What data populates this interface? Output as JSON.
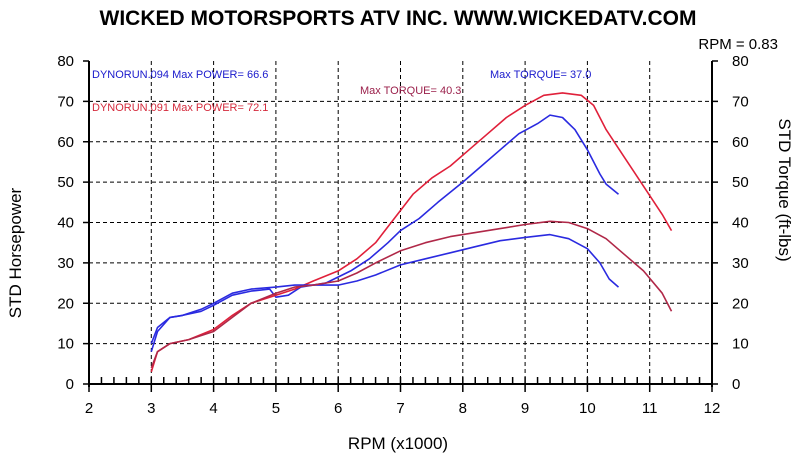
{
  "chart_data": {
    "type": "line",
    "title": "WICKED MOTORSPORTS ATV INC. WWW.WICKEDATV.COM",
    "rpm_note": "RPM = 0.83",
    "xlabel": "RPM (x1000)",
    "ylabel_left": "STD Horsepower",
    "ylabel_right": "STD Torque (ft-lbs)",
    "xlim": [
      2,
      12
    ],
    "ylim": [
      0,
      80
    ],
    "x_ticks": [
      2,
      3,
      4,
      5,
      6,
      7,
      8,
      9,
      10,
      11,
      12
    ],
    "y_ticks": [
      0,
      10,
      20,
      30,
      40,
      50,
      60,
      70,
      80
    ],
    "grid": true,
    "legend": [
      {
        "text": "DYNORUN.094  Max POWER= 66.6",
        "color": "#1a1acc"
      },
      {
        "text": "DYNORUN.091  Max POWER= 72.1",
        "color": "#d42a3c"
      }
    ],
    "annotations": [
      {
        "text": "Max TORQUE= 37.0",
        "color": "#1a1acc"
      },
      {
        "text": "Max TORQUE= 40.3",
        "color": "#9a1f4a"
      }
    ],
    "series": [
      {
        "name": "DYNORUN.094 power",
        "color": "#2a2ae0",
        "points": [
          [
            3.0,
            8
          ],
          [
            3.1,
            13
          ],
          [
            3.3,
            16.5
          ],
          [
            3.5,
            17
          ],
          [
            3.8,
            18
          ],
          [
            4.0,
            19.5
          ],
          [
            4.3,
            22
          ],
          [
            4.6,
            23
          ],
          [
            4.9,
            23.5
          ],
          [
            5.0,
            21.5
          ],
          [
            5.2,
            22
          ],
          [
            5.4,
            24
          ],
          [
            5.6,
            24.5
          ],
          [
            5.8,
            25
          ],
          [
            6.0,
            26.5
          ],
          [
            6.2,
            28
          ],
          [
            6.5,
            31
          ],
          [
            6.8,
            35
          ],
          [
            7.0,
            38
          ],
          [
            7.3,
            41
          ],
          [
            7.6,
            45
          ],
          [
            8.0,
            50
          ],
          [
            8.3,
            54
          ],
          [
            8.6,
            58
          ],
          [
            8.9,
            62
          ],
          [
            9.2,
            64.5
          ],
          [
            9.4,
            66.6
          ],
          [
            9.6,
            66
          ],
          [
            9.8,
            63
          ],
          [
            10.0,
            58
          ],
          [
            10.2,
            52
          ],
          [
            10.3,
            49.5
          ],
          [
            10.5,
            47
          ]
        ]
      },
      {
        "name": "DYNORUN.091 power",
        "color": "#e0203a",
        "points": [
          [
            3.0,
            3
          ],
          [
            3.1,
            8
          ],
          [
            3.3,
            10
          ],
          [
            3.6,
            11
          ],
          [
            4.0,
            13.5
          ],
          [
            4.3,
            17
          ],
          [
            4.6,
            20
          ],
          [
            5.0,
            22
          ],
          [
            5.3,
            23.5
          ],
          [
            5.6,
            25.5
          ],
          [
            6.0,
            28
          ],
          [
            6.3,
            31
          ],
          [
            6.6,
            35
          ],
          [
            6.9,
            41
          ],
          [
            7.2,
            47
          ],
          [
            7.5,
            51
          ],
          [
            7.8,
            54
          ],
          [
            8.1,
            58
          ],
          [
            8.4,
            62
          ],
          [
            8.7,
            66
          ],
          [
            9.0,
            69
          ],
          [
            9.3,
            71.5
          ],
          [
            9.6,
            72.1
          ],
          [
            9.9,
            71.5
          ],
          [
            10.1,
            69
          ],
          [
            10.3,
            63
          ],
          [
            10.6,
            56
          ],
          [
            10.9,
            49
          ],
          [
            11.2,
            42
          ],
          [
            11.35,
            38
          ]
        ]
      },
      {
        "name": "DYNORUN.094 torque",
        "color": "#2a2ae0",
        "points": [
          [
            3.0,
            10
          ],
          [
            3.1,
            14
          ],
          [
            3.3,
            16.5
          ],
          [
            3.5,
            17
          ],
          [
            3.8,
            18.5
          ],
          [
            4.0,
            20
          ],
          [
            4.3,
            22.5
          ],
          [
            4.6,
            23.5
          ],
          [
            5.0,
            24
          ],
          [
            5.3,
            24.5
          ],
          [
            5.6,
            24.5
          ],
          [
            6.0,
            24.5
          ],
          [
            6.3,
            25.5
          ],
          [
            6.6,
            27
          ],
          [
            7.0,
            29.5
          ],
          [
            7.4,
            31
          ],
          [
            7.8,
            32.5
          ],
          [
            8.2,
            34
          ],
          [
            8.6,
            35.5
          ],
          [
            9.0,
            36.3
          ],
          [
            9.4,
            37
          ],
          [
            9.7,
            36
          ],
          [
            10.0,
            33.5
          ],
          [
            10.2,
            30
          ],
          [
            10.35,
            26
          ],
          [
            10.5,
            24
          ]
        ]
      },
      {
        "name": "DYNORUN.091 torque",
        "color": "#b02848",
        "points": [
          [
            3.0,
            4
          ],
          [
            3.1,
            8
          ],
          [
            3.3,
            10
          ],
          [
            3.6,
            11
          ],
          [
            4.0,
            13
          ],
          [
            4.3,
            16.5
          ],
          [
            4.6,
            20
          ],
          [
            5.0,
            22.5
          ],
          [
            5.3,
            24
          ],
          [
            5.6,
            24.5
          ],
          [
            6.0,
            25.5
          ],
          [
            6.3,
            27.5
          ],
          [
            6.6,
            30
          ],
          [
            7.0,
            33
          ],
          [
            7.4,
            35
          ],
          [
            7.8,
            36.5
          ],
          [
            8.2,
            37.5
          ],
          [
            8.6,
            38.5
          ],
          [
            9.0,
            39.5
          ],
          [
            9.4,
            40.3
          ],
          [
            9.7,
            40
          ],
          [
            10.0,
            38.5
          ],
          [
            10.3,
            36
          ],
          [
            10.6,
            32
          ],
          [
            10.9,
            28
          ],
          [
            11.2,
            22.5
          ],
          [
            11.35,
            18
          ]
        ]
      }
    ]
  }
}
